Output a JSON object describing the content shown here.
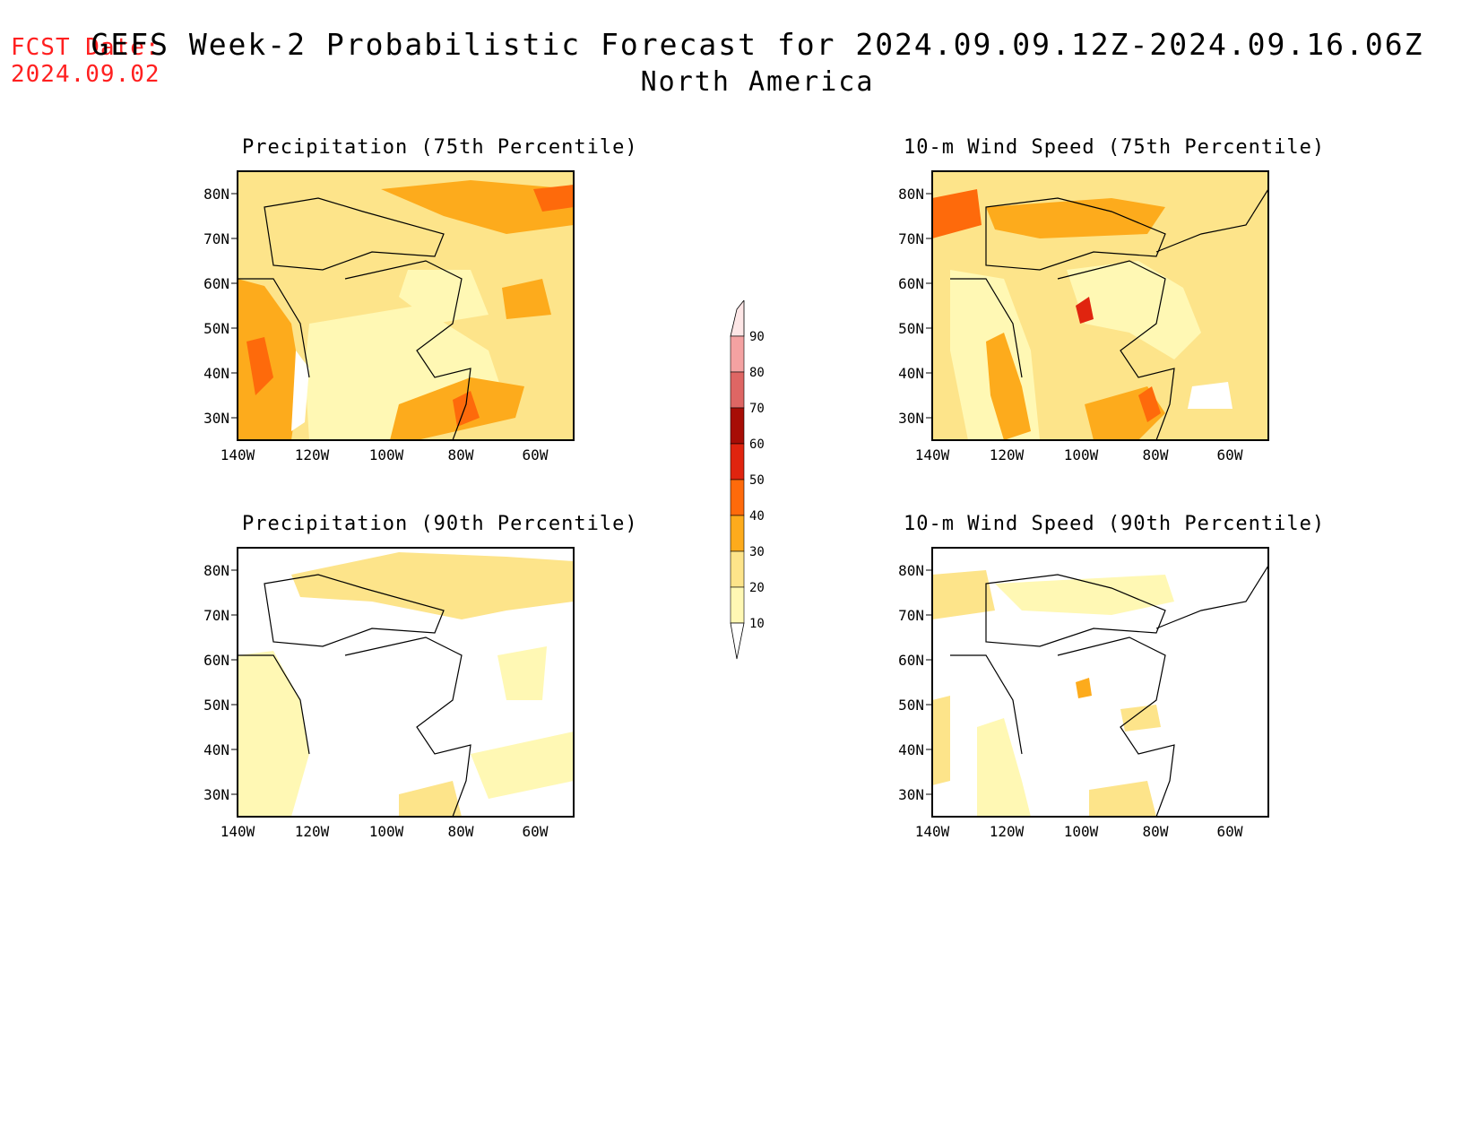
{
  "header": {
    "fcst_label": "FCST Date:",
    "fcst_date": "2024.09.02",
    "title": "GEFS Week-2 Probabilistic Forecast for 2024.09.09.12Z-2024.09.16.06Z",
    "region": "North America"
  },
  "axes": {
    "lat_ticks": [
      "80N",
      "70N",
      "60N",
      "50N",
      "40N",
      "30N"
    ],
    "lon_ticks": [
      "140W",
      "120W",
      "100W",
      "80W",
      "60W"
    ]
  },
  "panels": [
    {
      "id": "precip75",
      "title": "Precipitation (75th Percentile)"
    },
    {
      "id": "wind75",
      "title": "10-m Wind Speed (75th Percentile)"
    },
    {
      "id": "precip90",
      "title": "Precipitation (90th Percentile)"
    },
    {
      "id": "wind90",
      "title": "10-m Wind Speed (90th Percentile)"
    }
  ],
  "colorbar": {
    "labels": [
      "90",
      "80",
      "70",
      "60",
      "50",
      "40",
      "30",
      "20",
      "10"
    ],
    "colors": {
      "10": "#fff8b4",
      "20": "#fde48a",
      "30": "#fdab1c",
      "40": "#fe6a0b",
      "50": "#e0240f",
      "60": "#a70d06",
      "70": "#de6664",
      "80": "#f4a2a2",
      "90": "#fde6e6"
    }
  }
}
